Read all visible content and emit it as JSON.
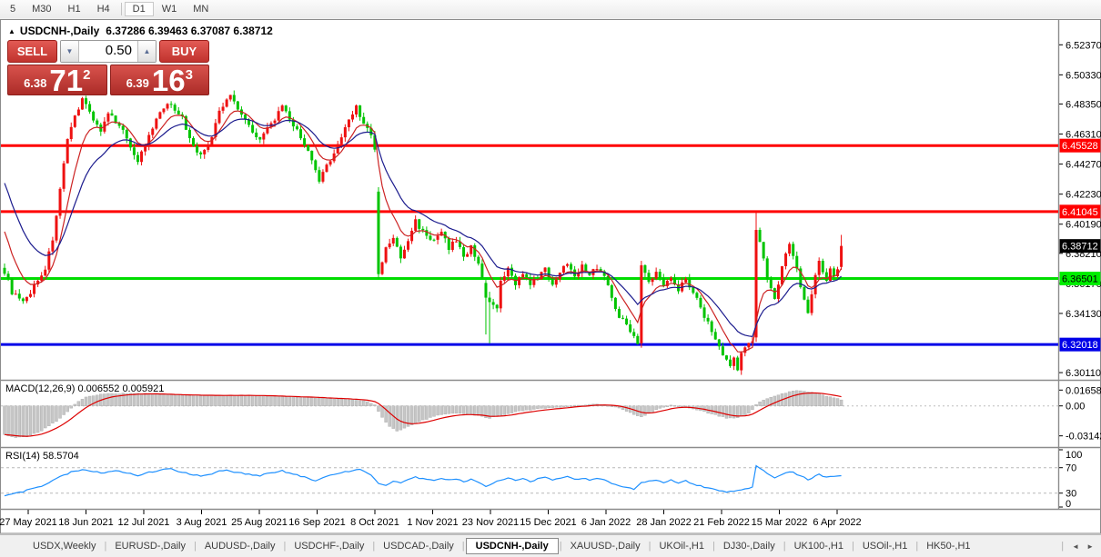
{
  "toolbar": {
    "active": "D1",
    "timeframes": [
      {
        "label": "5",
        "separator_before": false
      },
      {
        "label": "M30",
        "separator_before": false
      },
      {
        "label": "H1",
        "separator_before": false
      },
      {
        "label": "H4",
        "separator_before": false
      },
      {
        "label": "D1",
        "separator_before": true
      },
      {
        "label": "W1",
        "separator_before": false
      },
      {
        "label": "MN",
        "separator_before": false
      }
    ]
  },
  "chart": {
    "collapse_icon": "▲",
    "title": "USDCNH-,Daily",
    "ohlc": "6.37286 6.39463 6.37087 6.38712",
    "trade_panel": {
      "sell_label": "SELL",
      "buy_label": "BUY",
      "volume": "0.50",
      "decrease_icon": "▼",
      "increase_icon": "▲",
      "sell_price_small": "6.38",
      "sell_price_big": "71",
      "sell_price_sup": "2",
      "buy_price_small": "6.39",
      "buy_price_big": "16",
      "buy_price_sup": "3"
    }
  },
  "chart_data": {
    "type": "candlestick",
    "symbol": "USDCNH-",
    "timeframe": "Daily",
    "last_candle": {
      "open": 6.37286,
      "high": 6.39463,
      "low": 6.37087,
      "close": 6.38712
    },
    "candle_count": 227,
    "candle_spacing": 4.069,
    "ma_fast_start": 6.405,
    "ma_slow_start": 6.437,
    "colors": {
      "up": "#ee1111",
      "down": "#00c400",
      "ma_fast": "#cc2222",
      "ma_slow": "#1c1c8e",
      "macd_hist": "#c6c6c6",
      "macd_hist_border": "#a8a8a8",
      "macd_signal": "#dd0000",
      "rsi_line": "#1e90ff",
      "level_red": "#ff0000",
      "level_green": "#00dd00",
      "level_blue": "#0000e8"
    },
    "y_axis": {
      "top_price": 6.54055,
      "bottom_price": 6.29683,
      "ticks": [
        "6.52370",
        "6.50330",
        "6.48350",
        "6.46310",
        "6.44270",
        "6.42230",
        "6.40190",
        "6.38210",
        "6.36170",
        "6.34130",
        "6.30110"
      ]
    },
    "h_lines": [
      {
        "price": 6.45528,
        "label": "6.45528",
        "color": "#ff0000",
        "label_bg": "#ff0000",
        "label_fg": "#ffffff",
        "width": 3
      },
      {
        "price": 6.41045,
        "label": "6.41045",
        "color": "#ff0000",
        "label_bg": "#ff0000",
        "label_fg": "#ffffff",
        "width": 3
      },
      {
        "price": 6.36501,
        "label": "6.36501",
        "color": "#00dd00",
        "label_bg": "#00ee00",
        "label_fg": "#000000",
        "width": 3
      },
      {
        "price": 6.32018,
        "label": "6.32018",
        "color": "#0000e8",
        "label_bg": "#0000e8",
        "label_fg": "#ffffff",
        "width": 3
      }
    ],
    "current_price": {
      "price": 6.38712,
      "label": "6.38712",
      "label_bg": "#000000",
      "label_fg": "#ffffff"
    },
    "price_keypoints": [
      [
        0,
        6.37
      ],
      [
        2,
        6.356
      ],
      [
        5,
        6.348
      ],
      [
        8,
        6.36
      ],
      [
        11,
        6.372
      ],
      [
        13,
        6.392
      ],
      [
        15,
        6.425
      ],
      [
        17,
        6.458
      ],
      [
        19,
        6.475
      ],
      [
        21,
        6.488
      ],
      [
        23,
        6.478
      ],
      [
        26,
        6.465
      ],
      [
        28,
        6.476
      ],
      [
        31,
        6.47
      ],
      [
        34,
        6.455
      ],
      [
        36,
        6.445
      ],
      [
        39,
        6.461
      ],
      [
        42,
        6.478
      ],
      [
        45,
        6.484
      ],
      [
        48,
        6.474
      ],
      [
        50,
        6.46
      ],
      [
        53,
        6.448
      ],
      [
        56,
        6.461
      ],
      [
        58,
        6.478
      ],
      [
        61,
        6.49
      ],
      [
        63,
        6.481
      ],
      [
        66,
        6.469
      ],
      [
        69,
        6.459
      ],
      [
        72,
        6.47
      ],
      [
        75,
        6.481
      ],
      [
        78,
        6.469
      ],
      [
        81,
        6.457
      ],
      [
        83,
        6.444
      ],
      [
        85,
        6.431
      ],
      [
        88,
        6.446
      ],
      [
        91,
        6.461
      ],
      [
        93,
        6.473
      ],
      [
        95,
        6.482
      ],
      [
        97,
        6.47
      ],
      [
        99,
        6.462
      ],
      [
        100,
        6.452
      ],
      [
        101,
        6.368
      ],
      [
        103,
        6.385
      ],
      [
        105,
        6.393
      ],
      [
        107,
        6.378
      ],
      [
        109,
        6.391
      ],
      [
        111,
        6.404
      ],
      [
        113,
        6.397
      ],
      [
        116,
        6.39
      ],
      [
        118,
        6.396
      ],
      [
        120,
        6.386
      ],
      [
        122,
        6.391
      ],
      [
        124,
        6.38
      ],
      [
        126,
        6.386
      ],
      [
        128,
        6.376
      ],
      [
        130,
        6.358
      ],
      [
        131,
        6.349
      ],
      [
        133,
        6.344
      ],
      [
        134,
        6.362
      ],
      [
        136,
        6.371
      ],
      [
        138,
        6.362
      ],
      [
        140,
        6.369
      ],
      [
        142,
        6.36
      ],
      [
        144,
        6.366
      ],
      [
        146,
        6.371
      ],
      [
        148,
        6.362
      ],
      [
        150,
        6.369
      ],
      [
        152,
        6.376
      ],
      [
        154,
        6.368
      ],
      [
        156,
        6.373
      ],
      [
        158,
        6.368
      ],
      [
        160,
        6.373
      ],
      [
        162,
        6.367
      ],
      [
        164,
        6.352
      ],
      [
        166,
        6.34
      ],
      [
        168,
        6.333
      ],
      [
        170,
        6.327
      ],
      [
        171,
        6.322
      ],
      [
        172,
        6.374
      ],
      [
        174,
        6.362
      ],
      [
        176,
        6.369
      ],
      [
        178,
        6.36
      ],
      [
        180,
        6.367
      ],
      [
        182,
        6.358
      ],
      [
        184,
        6.365
      ],
      [
        186,
        6.356
      ],
      [
        188,
        6.345
      ],
      [
        190,
        6.335
      ],
      [
        192,
        6.324
      ],
      [
        194,
        6.314
      ],
      [
        196,
        6.305
      ],
      [
        197,
        6.311
      ],
      [
        198,
        6.303
      ],
      [
        199,
        6.313
      ],
      [
        200,
        6.318
      ],
      [
        201,
        6.322
      ],
      [
        202,
        6.324
      ],
      [
        203,
        6.398
      ],
      [
        204,
        6.39
      ],
      [
        205,
        6.378
      ],
      [
        206,
        6.366
      ],
      [
        207,
        6.357
      ],
      [
        208,
        6.352
      ],
      [
        209,
        6.361
      ],
      [
        210,
        6.372
      ],
      [
        211,
        6.381
      ],
      [
        212,
        6.387
      ],
      [
        213,
        6.379
      ],
      [
        214,
        6.371
      ],
      [
        215,
        6.36
      ],
      [
        216,
        6.35
      ],
      [
        217,
        6.342
      ],
      [
        218,
        6.356
      ],
      [
        219,
        6.368
      ],
      [
        220,
        6.376
      ],
      [
        221,
        6.369
      ],
      [
        222,
        6.364
      ],
      [
        223,
        6.372
      ],
      [
        224,
        6.367
      ],
      [
        225,
        6.373
      ],
      [
        226,
        6.387
      ]
    ],
    "candle_overrides": {
      "101": {
        "o": 6.424,
        "c": 6.368,
        "h": 6.427,
        "l": 6.365
      },
      "130": {
        "o": 6.362,
        "c": 6.352,
        "h": 6.364,
        "l": 6.327
      },
      "131": {
        "o": 6.352,
        "c": 6.349,
        "h": 6.356,
        "l": 6.321
      },
      "172": {
        "o": 6.321,
        "c": 6.374,
        "h": 6.377,
        "l": 6.318
      },
      "203": {
        "o": 6.325,
        "c": 6.398,
        "h": 6.4102,
        "l": 6.322
      },
      "226": {
        "o": 6.37286,
        "c": 6.38712,
        "h": 6.39463,
        "l": 6.37087
      }
    },
    "macd": {
      "label": "MACD(12,26,9)",
      "value_main": "0.006552",
      "value_signal": "0.005921",
      "ticks": [
        {
          "v": 0.016586,
          "label": "0.016586"
        },
        {
          "v": 0,
          "label": "0.00"
        },
        {
          "v": -0.031421,
          "label": "-0.031421"
        }
      ],
      "keypoints": [
        [
          0,
          -0.03
        ],
        [
          3,
          -0.0334
        ],
        [
          6,
          -0.0322
        ],
        [
          10,
          -0.026
        ],
        [
          14,
          -0.016
        ],
        [
          17,
          -0.006
        ],
        [
          19,
          0.002
        ],
        [
          22,
          0.009
        ],
        [
          27,
          0.0127
        ],
        [
          33,
          0.0131
        ],
        [
          40,
          0.0126
        ],
        [
          48,
          0.0112
        ],
        [
          56,
          0.0108
        ],
        [
          64,
          0.0112
        ],
        [
          72,
          0.0102
        ],
        [
          80,
          0.0092
        ],
        [
          88,
          0.0076
        ],
        [
          94,
          0.0064
        ],
        [
          98,
          0.0048
        ],
        [
          100,
          0.001
        ],
        [
          102,
          -0.012
        ],
        [
          104,
          -0.022
        ],
        [
          106,
          -0.0262
        ],
        [
          109,
          -0.022
        ],
        [
          113,
          -0.015
        ],
        [
          117,
          -0.01
        ],
        [
          121,
          -0.0078
        ],
        [
          125,
          -0.0082
        ],
        [
          128,
          -0.0105
        ],
        [
          131,
          -0.0128
        ],
        [
          134,
          -0.0098
        ],
        [
          138,
          -0.0062
        ],
        [
          142,
          -0.004
        ],
        [
          146,
          -0.0026
        ],
        [
          150,
          -0.0012
        ],
        [
          154,
          0.0002
        ],
        [
          158,
          0.0014
        ],
        [
          161,
          0.0016
        ],
        [
          164,
          0.0004
        ],
        [
          167,
          -0.0038
        ],
        [
          170,
          -0.0088
        ],
        [
          172,
          -0.0118
        ],
        [
          174,
          -0.0082
        ],
        [
          176,
          -0.0044
        ],
        [
          178,
          -0.0012
        ],
        [
          180,
          0.0006
        ],
        [
          183,
          -0.0004
        ],
        [
          186,
          -0.0028
        ],
        [
          189,
          -0.0062
        ],
        [
          192,
          -0.0096
        ],
        [
          195,
          -0.0128
        ],
        [
          198,
          -0.0122
        ],
        [
          201,
          -0.0078
        ],
        [
          202,
          -0.004
        ],
        [
          203,
          0.0015
        ],
        [
          205,
          0.0065
        ],
        [
          208,
          0.0105
        ],
        [
          211,
          0.0138
        ],
        [
          214,
          0.0162
        ],
        [
          216,
          0.0158
        ],
        [
          218,
          0.0142
        ],
        [
          220,
          0.0122
        ],
        [
          223,
          0.0092
        ],
        [
          226,
          0.0066
        ]
      ]
    },
    "rsi": {
      "label": "RSI(14)",
      "value": "58.5704",
      "levels": [
        70,
        30
      ],
      "ticks": [
        {
          "v": 100,
          "label": "100"
        },
        {
          "v": 70,
          "label": "70"
        },
        {
          "v": 30,
          "label": "30"
        },
        {
          "v": 0,
          "label": "0"
        }
      ],
      "keypoints": [
        [
          0,
          26
        ],
        [
          3,
          30
        ],
        [
          6,
          34
        ],
        [
          9,
          39
        ],
        [
          12,
          46
        ],
        [
          15,
          56
        ],
        [
          18,
          63
        ],
        [
          21,
          67
        ],
        [
          24,
          64
        ],
        [
          27,
          62
        ],
        [
          30,
          66
        ],
        [
          33,
          62
        ],
        [
          36,
          58
        ],
        [
          39,
          63
        ],
        [
          42,
          66
        ],
        [
          45,
          68
        ],
        [
          48,
          63
        ],
        [
          51,
          59
        ],
        [
          54,
          57
        ],
        [
          57,
          63
        ],
        [
          60,
          67
        ],
        [
          63,
          62
        ],
        [
          66,
          59
        ],
        [
          69,
          57
        ],
        [
          72,
          62
        ],
        [
          75,
          65
        ],
        [
          78,
          60
        ],
        [
          81,
          55
        ],
        [
          84,
          50
        ],
        [
          87,
          56
        ],
        [
          90,
          61
        ],
        [
          93,
          64
        ],
        [
          96,
          67
        ],
        [
          99,
          59
        ],
        [
          101,
          45
        ],
        [
          103,
          42
        ],
        [
          105,
          49
        ],
        [
          107,
          45
        ],
        [
          109,
          51
        ],
        [
          111,
          56
        ],
        [
          113,
          52
        ],
        [
          116,
          49
        ],
        [
          118,
          54
        ],
        [
          120,
          50
        ],
        [
          122,
          53
        ],
        [
          124,
          48
        ],
        [
          126,
          52
        ],
        [
          128,
          46
        ],
        [
          130,
          41
        ],
        [
          132,
          46
        ],
        [
          134,
          51
        ],
        [
          136,
          53
        ],
        [
          138,
          50
        ],
        [
          140,
          52
        ],
        [
          142,
          48
        ],
        [
          144,
          52
        ],
        [
          146,
          55
        ],
        [
          148,
          50
        ],
        [
          150,
          53
        ],
        [
          152,
          56
        ],
        [
          154,
          51
        ],
        [
          156,
          54
        ],
        [
          158,
          51
        ],
        [
          160,
          54
        ],
        [
          162,
          50
        ],
        [
          164,
          46
        ],
        [
          166,
          42
        ],
        [
          168,
          40
        ],
        [
          170,
          36
        ],
        [
          172,
          46
        ],
        [
          174,
          49
        ],
        [
          176,
          51
        ],
        [
          178,
          47
        ],
        [
          180,
          50
        ],
        [
          182,
          46
        ],
        [
          184,
          49
        ],
        [
          186,
          45
        ],
        [
          188,
          41
        ],
        [
          190,
          38
        ],
        [
          192,
          36
        ],
        [
          194,
          33
        ],
        [
          196,
          32
        ],
        [
          198,
          35
        ],
        [
          200,
          37
        ],
        [
          202,
          40
        ],
        [
          203,
          73
        ],
        [
          204,
          68
        ],
        [
          206,
          61
        ],
        [
          208,
          55
        ],
        [
          210,
          60
        ],
        [
          212,
          64
        ],
        [
          214,
          60
        ],
        [
          216,
          54
        ],
        [
          217,
          50
        ],
        [
          218,
          54
        ],
        [
          220,
          59
        ],
        [
          222,
          55
        ],
        [
          224,
          57
        ],
        [
          226,
          58.6
        ]
      ]
    },
    "x_axis": {
      "tick_x0": 31,
      "tick_dx": 63.5,
      "dates": [
        "27 May 2021",
        "18 Jun 2021",
        "12 Jul 2021",
        "3 Aug 2021",
        "25 Aug 2021",
        "16 Sep 2021",
        "8 Oct 2021",
        "1 Nov 2021",
        "23 Nov 2021",
        "15 Dec 2021",
        "6 Jan 2022",
        "28 Jan 2022",
        "21 Feb 2022",
        "15 Mar 2022",
        "6 Apr 2022"
      ]
    }
  },
  "tabs": {
    "active_index": 5,
    "scroll_left_icon": "◄",
    "scroll_right_icon": "►",
    "items": [
      "USDX,Weekly",
      "EURUSD-,Daily",
      "AUDUSD-,Daily",
      "USDCHF-,Daily",
      "USDCAD-,Daily",
      "USDCNH-,Daily",
      "XAUUSD-,Daily",
      "UKOil-,H1",
      "DJ30-,Daily",
      "UK100-,H1",
      "USOil-,H1",
      "HK50-,H1"
    ]
  }
}
